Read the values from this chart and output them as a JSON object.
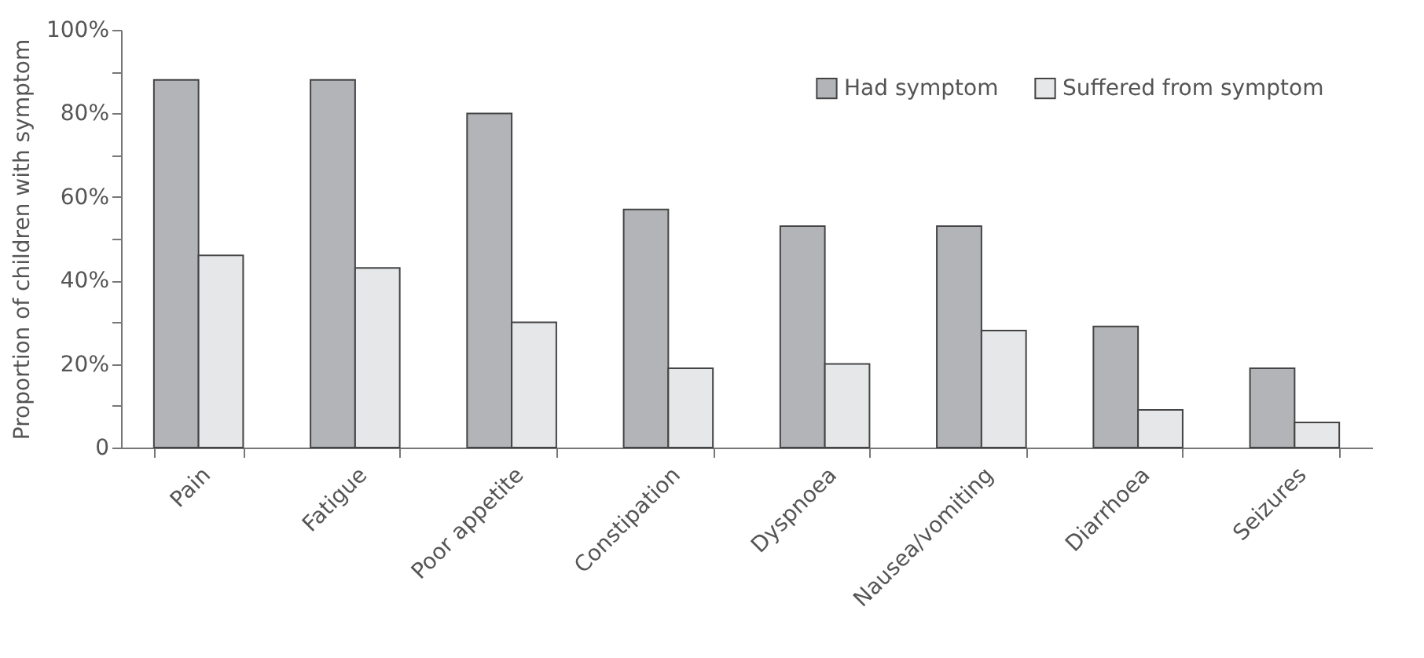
{
  "chart_data": {
    "type": "bar",
    "ylabel": "Proportion of children with symptom",
    "categories": [
      "Pain",
      "Fatigue",
      "Poor appetite",
      "Constipation",
      "Dyspnoea",
      "Nausea/vomiting",
      "Diarrhoea",
      "Seizures"
    ],
    "series": [
      {
        "name": "Had symptom",
        "color": "#b3b4b8",
        "values": [
          88,
          88,
          80,
          57,
          53,
          53,
          29,
          19
        ]
      },
      {
        "name": "Suffered from symptom",
        "color": "#e6e7e8",
        "values": [
          46,
          43,
          30,
          19,
          20,
          28,
          9,
          6
        ]
      }
    ],
    "ylim": [
      0,
      100
    ],
    "yticks": [
      0,
      {
        "value": 10,
        "label": null
      },
      {
        "value": 20,
        "label": "20%"
      },
      {
        "value": 30,
        "label": null
      },
      {
        "value": 40,
        "label": "40%"
      },
      {
        "value": 50,
        "label": null
      },
      {
        "value": 60,
        "label": "60%"
      },
      {
        "value": 70,
        "label": null
      },
      {
        "value": 80,
        "label": "80%"
      },
      {
        "value": 90,
        "label": null
      },
      {
        "value": 100,
        "label": "100%"
      }
    ],
    "legend": "top right",
    "grid": false
  }
}
